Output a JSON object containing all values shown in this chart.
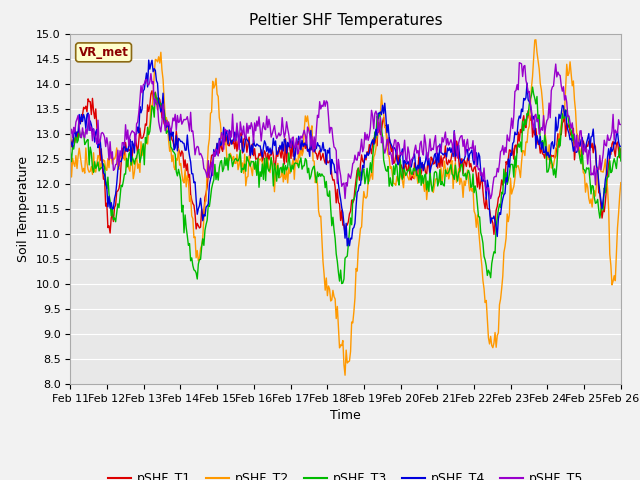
{
  "title": "Peltier SHF Temperatures",
  "xlabel": "Time",
  "ylabel": "Soil Temperature",
  "ylim": [
    8.0,
    15.0
  ],
  "yticks": [
    8.0,
    8.5,
    9.0,
    9.5,
    10.0,
    10.5,
    11.0,
    11.5,
    12.0,
    12.5,
    13.0,
    13.5,
    14.0,
    14.5,
    15.0
  ],
  "xtick_labels": [
    "Feb 11",
    "Feb 12",
    "Feb 13",
    "Feb 14",
    "Feb 15",
    "Feb 16",
    "Feb 17",
    "Feb 18",
    "Feb 19",
    "Feb 20",
    "Feb 21",
    "Feb 22",
    "Feb 23",
    "Feb 24",
    "Feb 25",
    "Feb 26"
  ],
  "series_order": [
    "pSHF_T1",
    "pSHF_T2",
    "pSHF_T3",
    "pSHF_T4",
    "pSHF_T5"
  ],
  "series_colors": {
    "pSHF_T1": "#dd0000",
    "pSHF_T2": "#ff9900",
    "pSHF_T3": "#00bb00",
    "pSHF_T4": "#0000dd",
    "pSHF_T5": "#9900cc"
  },
  "lw": 1.0,
  "legend_label": "VR_met",
  "plot_bg_color": "#e8e8e8",
  "fig_bg_color": "#f2f2f2",
  "grid_color": "#ffffff",
  "n_points": 500,
  "title_fontsize": 11,
  "label_fontsize": 9,
  "tick_fontsize": 8,
  "legend_fontsize": 9
}
